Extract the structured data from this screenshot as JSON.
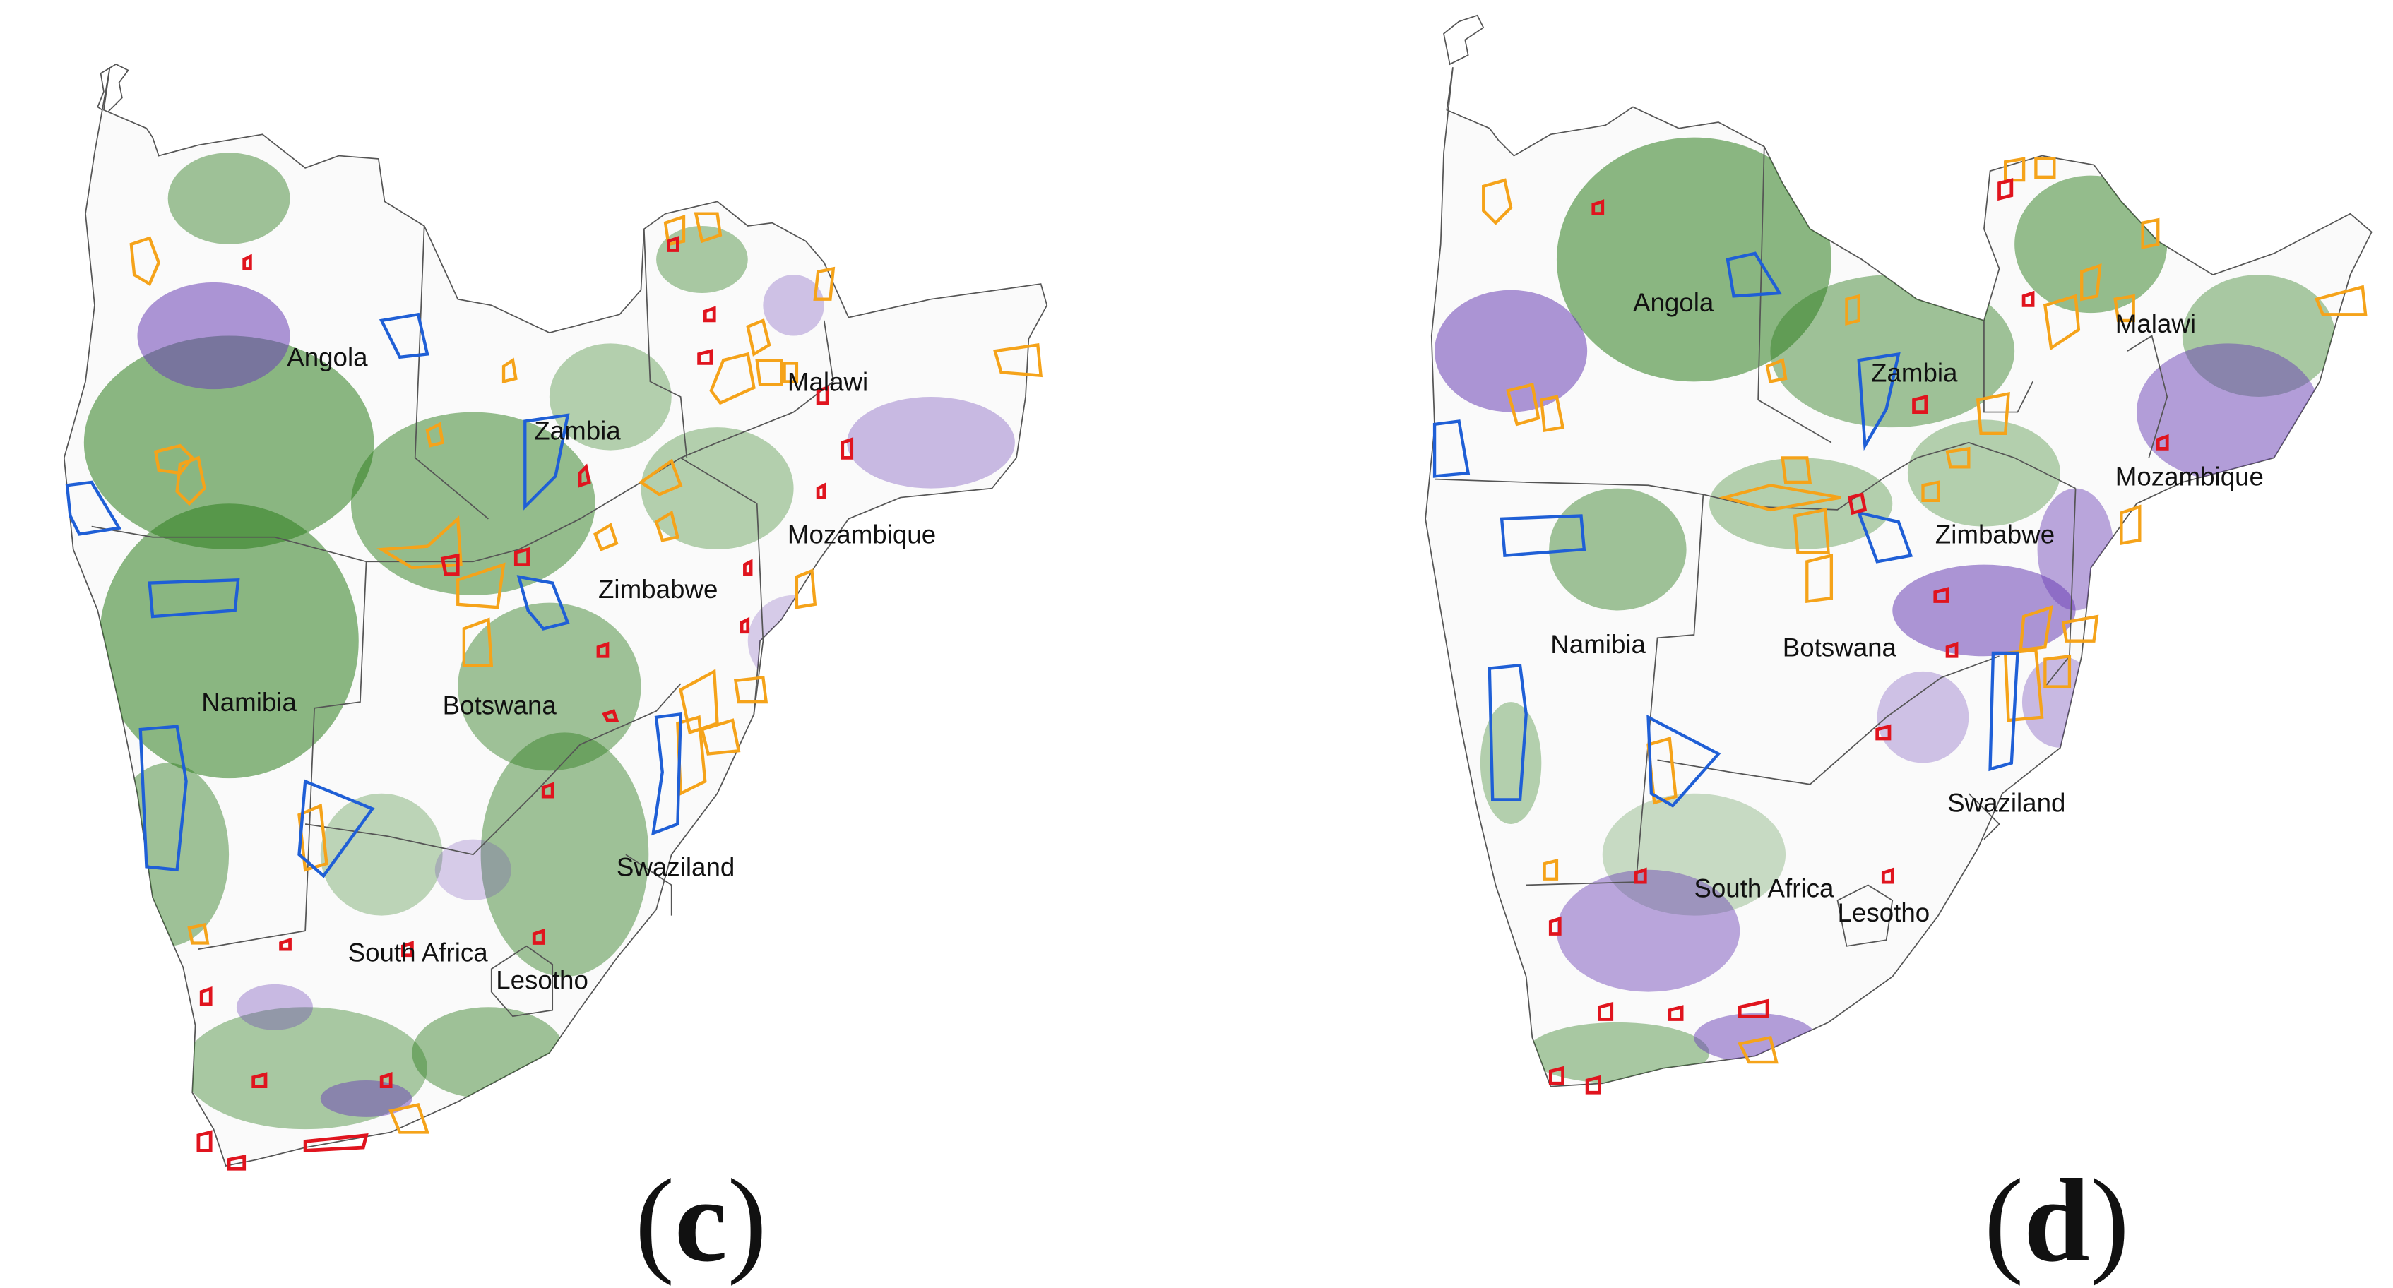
{
  "panels": [
    {
      "id": "c",
      "label_open": "(",
      "label_letter": "c",
      "label_close": ")",
      "country_labels": [
        "Angola",
        "Zambia",
        "Malawi",
        "Mozambique",
        "Zimbabwe",
        "Namibia",
        "Botswana",
        "Swaziland",
        "South Africa",
        "Lesotho"
      ]
    },
    {
      "id": "d",
      "label_open": "(",
      "label_letter": "d",
      "label_close": ")",
      "country_labels": [
        "Angola",
        "Zambia",
        "Malawi",
        "Mozambique",
        "Zimbabwe",
        "Namibia",
        "Botswana",
        "Swaziland",
        "South Africa",
        "Lesotho"
      ]
    }
  ],
  "colors": {
    "increase": "#2e7d1e",
    "decrease": "#6a3fb5",
    "outline_orange": "#f5a31a",
    "outline_blue": "#1f5fd6",
    "outline_red": "#e0141e",
    "border": "#555555"
  }
}
